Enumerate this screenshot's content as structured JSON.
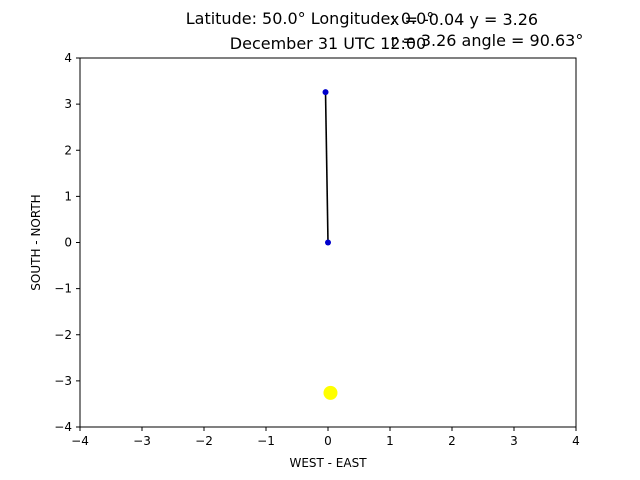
{
  "header": {
    "location_title": "Latitude: 50.0° Longitude: 0.0°",
    "date_title": "December 31 UTC 12:00",
    "xy_readout": "x = -0.04 y = 3.26",
    "polar_readout": "r = 3.26 angle = 90.63°"
  },
  "chart_data": {
    "type": "scatter",
    "xlabel": "WEST - EAST",
    "ylabel": "SOUTH - NORTH",
    "xlim": [
      -4,
      4
    ],
    "ylim": [
      -4,
      4
    ],
    "x_ticks": [
      -4,
      -3,
      -2,
      -1,
      0,
      1,
      2,
      3,
      4
    ],
    "y_ticks": [
      -4,
      -3,
      -2,
      -1,
      0,
      1,
      2,
      3,
      4
    ],
    "x_tick_labels": [
      "−4",
      "−3",
      "−2",
      "−1",
      "0",
      "1",
      "2",
      "3",
      "4"
    ],
    "y_tick_labels": [
      "−4",
      "−3",
      "−2",
      "−1",
      "0",
      "1",
      "2",
      "3",
      "4"
    ],
    "grid": false,
    "series": [
      {
        "type": "line",
        "color": "#000000",
        "points": [
          {
            "x": 0.0,
            "y": 0.0
          },
          {
            "x": -0.04,
            "y": 3.26
          }
        ]
      },
      {
        "type": "scatter",
        "color": "#0000cc",
        "points": [
          {
            "x": 0.0,
            "y": 0.0
          },
          {
            "x": -0.04,
            "y": 3.26
          }
        ]
      },
      {
        "type": "scatter",
        "color": "#ffff00",
        "points": [
          {
            "x": 0.04,
            "y": -3.26
          }
        ]
      }
    ]
  }
}
